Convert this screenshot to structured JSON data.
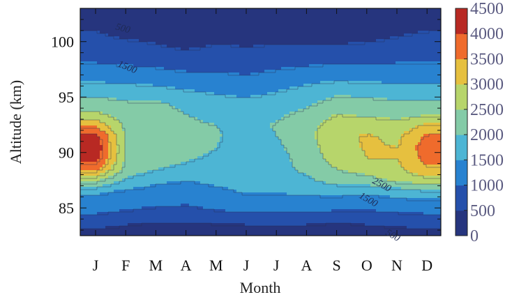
{
  "chart_data": {
    "type": "heatmap",
    "xlabel": "Month",
    "ylabel": "Altitude (km)",
    "x_tick_labels": [
      "J",
      "F",
      "M",
      "A",
      "M",
      "J",
      "J",
      "A",
      "S",
      "O",
      "N",
      "D"
    ],
    "y_ticks": [
      85,
      90,
      95,
      100
    ],
    "ylim": [
      82.5,
      103
    ],
    "colorbar": {
      "ticks": [
        0,
        500,
        1000,
        1500,
        2000,
        2500,
        3000,
        3500,
        4000,
        4500
      ],
      "range": [
        0,
        4500
      ]
    },
    "altitudes": [
      82.5,
      83.5,
      84.5,
      85.5,
      86.5,
      87.5,
      88.5,
      89.5,
      90.5,
      91.5,
      92.5,
      93.5,
      94.5,
      95.5,
      96.5,
      97.5,
      98.5,
      99.5,
      100.5,
      101.5,
      102.5,
      103.0
    ],
    "values": [
      [
        300,
        300,
        300,
        300,
        300,
        300,
        300,
        300,
        300,
        300,
        300,
        300
      ],
      [
        600,
        500,
        400,
        400,
        450,
        500,
        500,
        500,
        400,
        500,
        550,
        600
      ],
      [
        1000,
        900,
        800,
        800,
        900,
        950,
        950,
        950,
        900,
        900,
        950,
        1000
      ],
      [
        1300,
        1200,
        1100,
        1050,
        1200,
        1300,
        1250,
        1300,
        1250,
        1200,
        1300,
        1350
      ],
      [
        1600,
        1400,
        1300,
        1250,
        1400,
        1550,
        1550,
        1600,
        1650,
        1600,
        1750,
        1900
      ],
      [
        2600,
        1900,
        1600,
        1500,
        1600,
        1650,
        1750,
        1900,
        2200,
        2300,
        2600,
        2800
      ],
      [
        3600,
        2300,
        2000,
        1900,
        1750,
        1700,
        1850,
        2100,
        2500,
        2700,
        2900,
        3400
      ],
      [
        4300,
        2400,
        2150,
        2050,
        1900,
        1700,
        1800,
        2250,
        2700,
        3000,
        3000,
        3700
      ],
      [
        4400,
        2400,
        2200,
        2200,
        2000,
        1750,
        1900,
        2300,
        2800,
        3050,
        3000,
        3800
      ],
      [
        4200,
        2400,
        2300,
        2150,
        2050,
        1800,
        2000,
        2350,
        2900,
        3050,
        2900,
        3600
      ],
      [
        3400,
        2350,
        2250,
        2100,
        2000,
        1800,
        2050,
        2300,
        2800,
        2800,
        2700,
        3100
      ],
      [
        2600,
        2200,
        2150,
        2000,
        1850,
        1750,
        1900,
        2150,
        2500,
        2400,
        2300,
        2400
      ],
      [
        2200,
        2050,
        2050,
        1900,
        1700,
        1650,
        1750,
        1900,
        2200,
        2200,
        2100,
        2100
      ],
      [
        1850,
        1800,
        1700,
        1550,
        1450,
        1350,
        1500,
        1700,
        1900,
        1800,
        1700,
        1750
      ],
      [
        1450,
        1400,
        1350,
        1250,
        1200,
        1100,
        1250,
        1400,
        1500,
        1450,
        1450,
        1450
      ],
      [
        1150,
        1100,
        1050,
        950,
        950,
        900,
        1000,
        1100,
        1200,
        1150,
        1150,
        1150
      ],
      [
        900,
        850,
        800,
        700,
        750,
        700,
        800,
        800,
        850,
        850,
        900,
        900
      ],
      [
        700,
        650,
        550,
        450,
        550,
        500,
        550,
        550,
        550,
        600,
        650,
        700
      ],
      [
        550,
        450,
        400,
        350,
        400,
        400,
        400,
        400,
        350,
        400,
        500,
        550
      ],
      [
        450,
        350,
        300,
        250,
        300,
        300,
        300,
        300,
        250,
        300,
        400,
        450
      ],
      [
        250,
        200,
        200,
        150,
        200,
        200,
        200,
        200,
        150,
        200,
        250,
        250
      ],
      [
        200,
        150,
        150,
        100,
        150,
        150,
        150,
        150,
        100,
        150,
        200,
        200
      ]
    ],
    "contour_labels": [
      "500",
      "1500",
      "2500",
      "1500",
      "500"
    ],
    "grid": false,
    "legend": "colorbar-right"
  }
}
